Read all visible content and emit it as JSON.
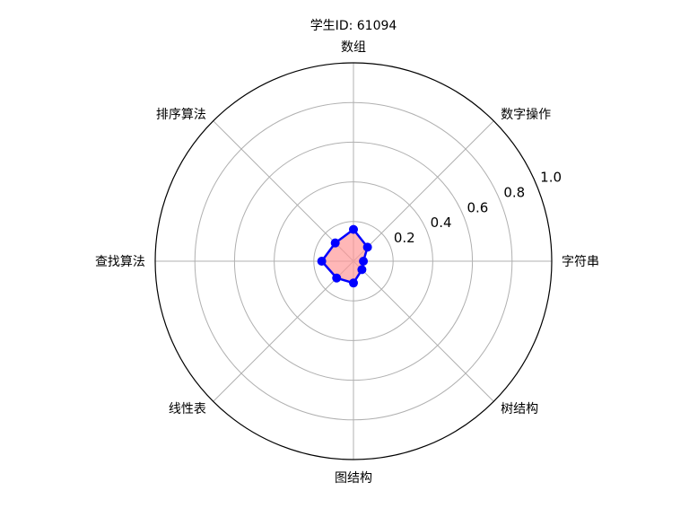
{
  "chart_data": {
    "type": "radar",
    "title": "学生ID: 61094",
    "categories": [
      "字符串",
      "数字操作",
      "数组",
      "排序算法",
      "查找算法",
      "线性表",
      "图结构",
      "树结构"
    ],
    "series": [
      {
        "values": [
          0.05,
          0.1,
          0.16,
          0.13,
          0.16,
          0.12,
          0.11,
          0.06
        ]
      }
    ],
    "rlim": [
      0,
      1.0
    ],
    "rticks": [
      0.2,
      0.4,
      0.6,
      0.8,
      1.0
    ],
    "rtick_labels": [
      "0.2",
      "0.4",
      "0.6",
      "0.8",
      "1.0"
    ],
    "grid": true,
    "colors": {
      "line": "#0000ff",
      "fill": "#ff9999",
      "marker": "#0000ff",
      "grid": "#b0b0b0",
      "frame": "#000000"
    }
  }
}
